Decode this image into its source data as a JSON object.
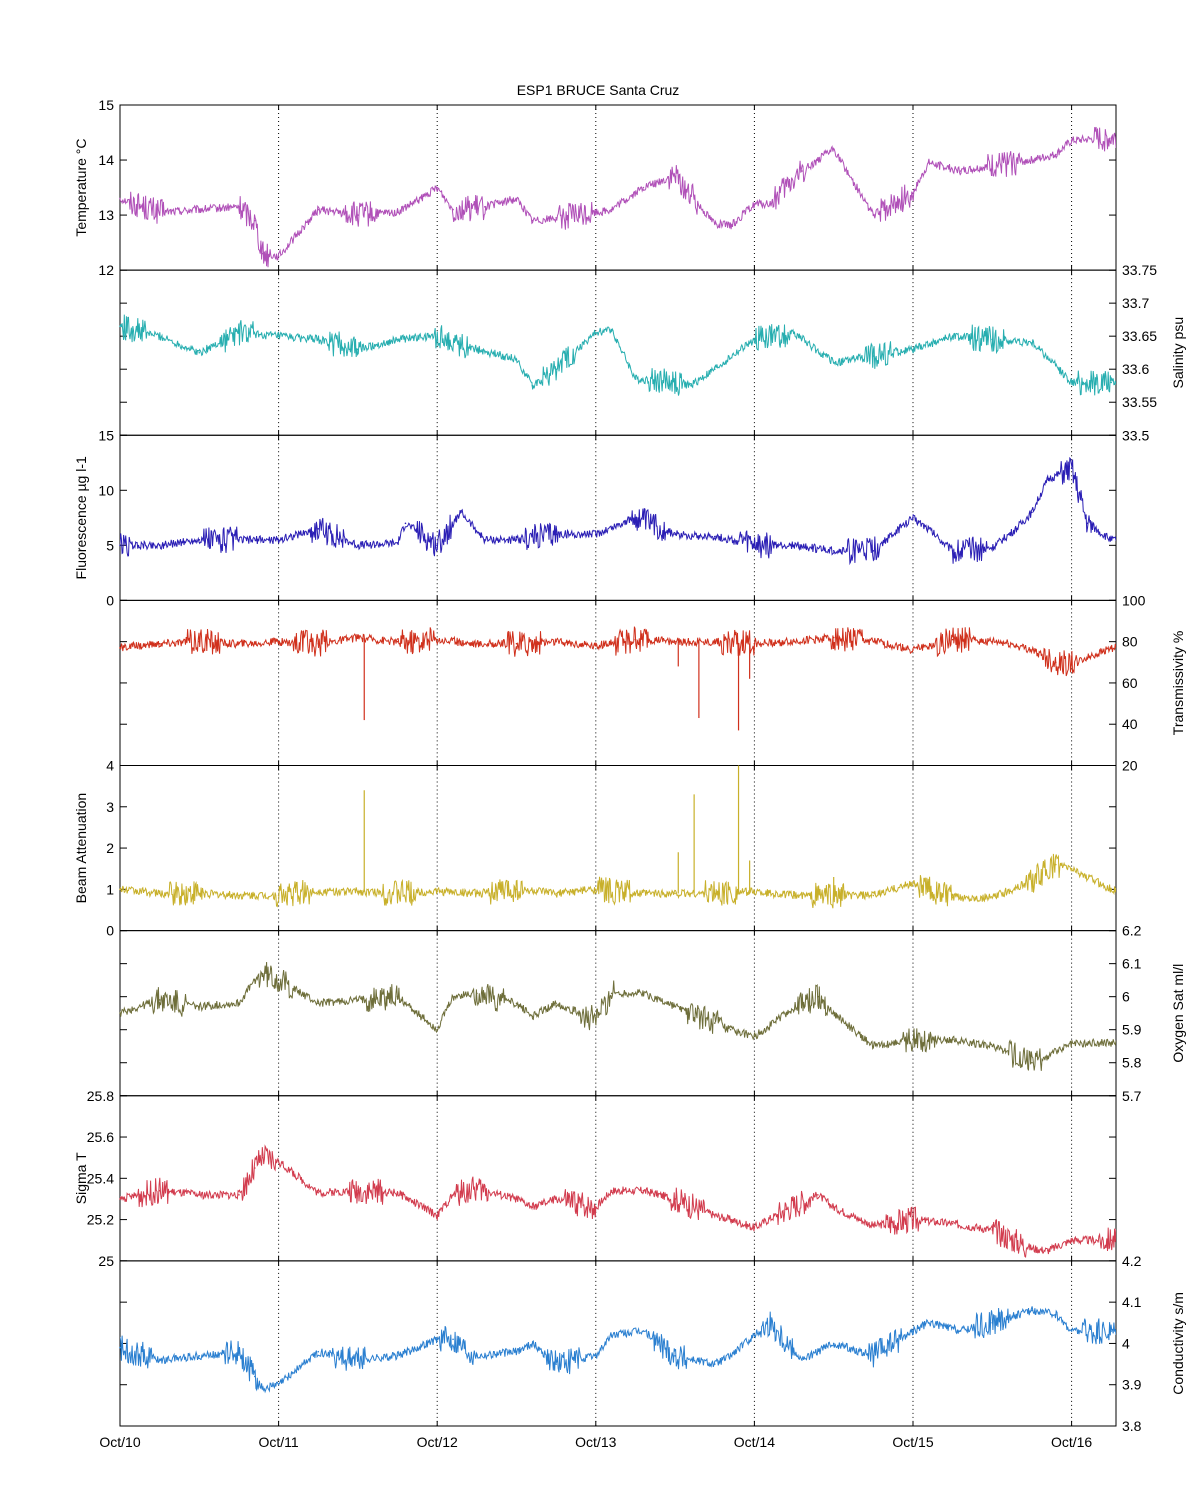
{
  "chart_data": {
    "type": "line",
    "title": "ESP1 BRUCE Santa Cruz",
    "x_range": [
      "Oct/10",
      "Oct/16 06:00"
    ],
    "x_tick_labels": [
      "Oct/10",
      "Oct/11",
      "Oct/12",
      "Oct/13",
      "Oct/14",
      "Oct/15",
      "Oct/16"
    ],
    "grid": "vertical dotted lines at day ticks",
    "panels": [
      {
        "name": "Temperature °C",
        "ylabel": "Temperature °C",
        "axis_side": "left",
        "ylim": [
          12,
          15
        ],
        "yticks": [
          12,
          13,
          14,
          15
        ],
        "color": "#b050b8",
        "series": {
          "x": [
            0,
            0.25,
            0.5,
            0.75,
            0.85,
            0.9,
            1,
            1.25,
            1.5,
            1.75,
            1.9,
            2,
            2.1,
            2.3,
            2.5,
            2.6,
            2.75,
            3,
            3.1,
            3.3,
            3.5,
            3.75,
            3.85,
            4,
            4.1,
            4.3,
            4.5,
            4.75,
            5,
            5.1,
            5.3,
            5.5,
            5.75,
            5.9,
            6,
            6.25
          ],
          "y": [
            13.3,
            13.05,
            13.1,
            13.15,
            12.9,
            12.3,
            12.25,
            13.1,
            13.0,
            13.05,
            13.3,
            13.5,
            13.1,
            13.15,
            13.3,
            12.9,
            12.95,
            13.05,
            13.1,
            13.5,
            13.7,
            12.85,
            12.8,
            13.2,
            13.2,
            13.8,
            14.2,
            13.0,
            13.4,
            13.95,
            13.8,
            13.9,
            14.0,
            14.1,
            14.35,
            14.4
          ]
        }
      },
      {
        "name": "Salinity psu",
        "ylabel": "Salinity psu",
        "axis_side": "right",
        "ylim": [
          33.5,
          33.75
        ],
        "yticks": [
          33.5,
          33.55,
          33.6,
          33.65,
          33.7,
          33.75
        ],
        "color": "#27aeb0",
        "series": {
          "x": [
            0,
            0.25,
            0.5,
            0.75,
            1,
            1.25,
            1.5,
            1.75,
            2,
            2.25,
            2.5,
            2.6,
            2.75,
            3,
            3.1,
            3.25,
            3.5,
            3.6,
            3.75,
            4,
            4.25,
            4.5,
            4.75,
            5,
            5.25,
            5.5,
            5.75,
            5.8,
            6,
            6.25
          ],
          "y": [
            33.665,
            33.65,
            33.625,
            33.655,
            33.65,
            33.645,
            33.63,
            33.645,
            33.65,
            33.63,
            33.615,
            33.575,
            33.6,
            33.655,
            33.66,
            33.585,
            33.58,
            33.575,
            33.6,
            33.645,
            33.655,
            33.61,
            33.62,
            33.63,
            33.65,
            33.645,
            33.64,
            33.63,
            33.58,
            33.58
          ]
        }
      },
      {
        "name": "Fluorescence µg l-1",
        "ylabel": "Fluorescence µg l-1",
        "axis_side": "left",
        "ylim": [
          0,
          15
        ],
        "yticks": [
          0,
          5,
          10,
          15
        ],
        "color": "#2b1fb5",
        "series": {
          "x": [
            0,
            0.25,
            0.5,
            0.75,
            1,
            1.25,
            1.5,
            1.75,
            1.8,
            2,
            2.15,
            2.3,
            2.5,
            2.75,
            3,
            3.25,
            3.5,
            3.75,
            4,
            4.25,
            4.5,
            4.75,
            5,
            5.1,
            5.25,
            5.5,
            5.65,
            5.75,
            5.85,
            6,
            6.1,
            6.25
          ],
          "y": [
            5,
            5,
            5.5,
            5.5,
            5.5,
            6.5,
            5,
            5.2,
            7,
            5,
            8,
            5.5,
            5.5,
            6,
            6,
            7.5,
            6,
            5.8,
            5,
            5,
            4.5,
            4.5,
            7.5,
            6.5,
            4.5,
            4.8,
            6.5,
            8,
            11,
            12,
            7,
            5.5
          ]
        }
      },
      {
        "name": "Transmissivity %",
        "ylabel": "Transmissivity %",
        "axis_side": "right",
        "ylim": [
          20,
          100
        ],
        "yticks": [
          20,
          40,
          60,
          80,
          100
        ],
        "color": "#d0301c",
        "spikes": [
          {
            "x": 1.54,
            "y": 42
          },
          {
            "x": 2.6,
            "y": 75
          },
          {
            "x": 3.65,
            "y": 43
          },
          {
            "x": 3.52,
            "y": 68
          },
          {
            "x": 3.9,
            "y": 37
          },
          {
            "x": 3.97,
            "y": 62
          }
        ],
        "series": {
          "x": [
            0,
            0.25,
            0.5,
            0.75,
            1,
            1.25,
            1.5,
            1.75,
            2,
            2.25,
            2.5,
            2.75,
            3,
            3.25,
            3.5,
            3.75,
            4,
            4.25,
            4.5,
            4.75,
            5,
            5.25,
            5.5,
            5.6,
            5.75,
            5.9,
            6,
            6.25
          ],
          "y": [
            77,
            79,
            80,
            79,
            80,
            79,
            82,
            80,
            81,
            79,
            79,
            80,
            78,
            81,
            80,
            80,
            79,
            80,
            82,
            80,
            76,
            81,
            80,
            79,
            76,
            70,
            69,
            77
          ]
        }
      },
      {
        "name": "Beam Attenuation",
        "ylabel": "Beam Attenuation",
        "axis_side": "left",
        "ylim": [
          0,
          4
        ],
        "yticks": [
          0,
          1,
          2,
          3,
          4
        ],
        "color": "#c8b02a",
        "spikes": [
          {
            "x": 1.54,
            "y": 3.4
          },
          {
            "x": 3.52,
            "y": 1.9
          },
          {
            "x": 3.62,
            "y": 3.3
          },
          {
            "x": 3.9,
            "y": 4.0
          },
          {
            "x": 3.97,
            "y": 1.7
          },
          {
            "x": 4.5,
            "y": 1.3
          }
        ],
        "series": {
          "x": [
            0,
            0.25,
            0.5,
            0.75,
            1,
            1.25,
            1.5,
            1.75,
            2,
            2.25,
            2.5,
            2.75,
            3,
            3.25,
            3.5,
            3.75,
            4,
            4.25,
            4.5,
            4.75,
            5,
            5.25,
            5.5,
            5.75,
            5.9,
            6,
            6.25
          ],
          "y": [
            1.0,
            0.9,
            0.9,
            0.85,
            0.85,
            0.95,
            0.95,
            0.9,
            0.95,
            0.9,
            1.0,
            0.9,
            1.0,
            0.9,
            0.9,
            0.9,
            0.95,
            0.85,
            0.85,
            0.85,
            1.15,
            0.8,
            0.8,
            1.2,
            1.6,
            1.5,
            1.0
          ]
        }
      },
      {
        "name": "Oxygen Sat ml/l",
        "ylabel": "Oxygen Sat ml/l",
        "axis_side": "right",
        "ylim": [
          5.7,
          6.2
        ],
        "yticks": [
          5.7,
          5.8,
          5.9,
          6.0,
          6.1,
          6.2
        ],
        "color": "#6e6e3a",
        "series": {
          "x": [
            0,
            0.25,
            0.5,
            0.75,
            0.85,
            0.9,
            1,
            1.25,
            1.5,
            1.75,
            2,
            2.1,
            2.25,
            2.5,
            2.6,
            2.75,
            3,
            3.1,
            3.3,
            3.5,
            3.75,
            3.85,
            4,
            4.2,
            4.4,
            4.5,
            4.75,
            5,
            5.25,
            5.5,
            5.75,
            5.85,
            6,
            6.25
          ],
          "y": [
            5.95,
            5.99,
            5.97,
            5.98,
            6.05,
            6.07,
            6.05,
            5.98,
            5.99,
            6.0,
            5.9,
            6.0,
            6.01,
            5.98,
            5.94,
            5.98,
            5.93,
            6.01,
            6.01,
            5.97,
            5.92,
            5.9,
            5.88,
            5.95,
            6.0,
            5.95,
            5.85,
            5.87,
            5.87,
            5.85,
            5.8,
            5.82,
            5.86,
            5.86
          ]
        }
      },
      {
        "name": "Sigma T",
        "ylabel": "Sigma T",
        "axis_side": "left",
        "ylim": [
          25,
          25.8
        ],
        "yticks": [
          25,
          25.2,
          25.4,
          25.6,
          25.8
        ],
        "color": "#d23c4e",
        "series": {
          "x": [
            0,
            0.25,
            0.5,
            0.75,
            0.85,
            0.9,
            1,
            1.25,
            1.5,
            1.75,
            2,
            2.1,
            2.25,
            2.5,
            2.6,
            2.75,
            3,
            3.1,
            3.3,
            3.5,
            3.75,
            3.85,
            4,
            4.2,
            4.4,
            4.5,
            4.75,
            5,
            5.25,
            5.5,
            5.75,
            5.85,
            6,
            6.25
          ],
          "y": [
            25.3,
            25.34,
            25.32,
            25.32,
            25.45,
            25.5,
            25.48,
            25.33,
            25.34,
            25.33,
            25.22,
            25.32,
            25.35,
            25.3,
            25.26,
            25.3,
            25.26,
            25.34,
            25.34,
            25.3,
            25.22,
            25.2,
            25.16,
            25.25,
            25.32,
            25.26,
            25.17,
            25.2,
            25.18,
            25.15,
            25.06,
            25.05,
            25.1,
            25.1
          ]
        }
      },
      {
        "name": "Conductivity s/m",
        "ylabel": "Conductivity s/m",
        "axis_side": "right",
        "ylim": [
          3.8,
          4.2
        ],
        "yticks": [
          3.8,
          3.9,
          4.0,
          4.1,
          4.2
        ],
        "color": "#2a7fd0",
        "series": {
          "x": [
            0,
            0.25,
            0.5,
            0.75,
            0.85,
            0.9,
            1,
            1.25,
            1.5,
            1.75,
            2,
            2.1,
            2.25,
            2.5,
            2.6,
            2.75,
            3,
            3.1,
            3.3,
            3.5,
            3.75,
            3.85,
            4,
            4.1,
            4.3,
            4.5,
            4.75,
            5,
            5.1,
            5.3,
            5.5,
            5.75,
            5.9,
            6,
            6.25
          ],
          "y": [
            3.99,
            3.96,
            3.97,
            3.98,
            3.92,
            3.89,
            3.9,
            3.98,
            3.96,
            3.97,
            4.01,
            4.01,
            3.97,
            3.98,
            4.0,
            3.95,
            3.97,
            4.02,
            4.03,
            3.97,
            3.95,
            3.97,
            4.02,
            4.05,
            3.96,
            4.0,
            3.97,
            4.03,
            4.05,
            4.03,
            4.05,
            4.08,
            4.07,
            4.03,
            4.03
          ]
        }
      }
    ]
  }
}
